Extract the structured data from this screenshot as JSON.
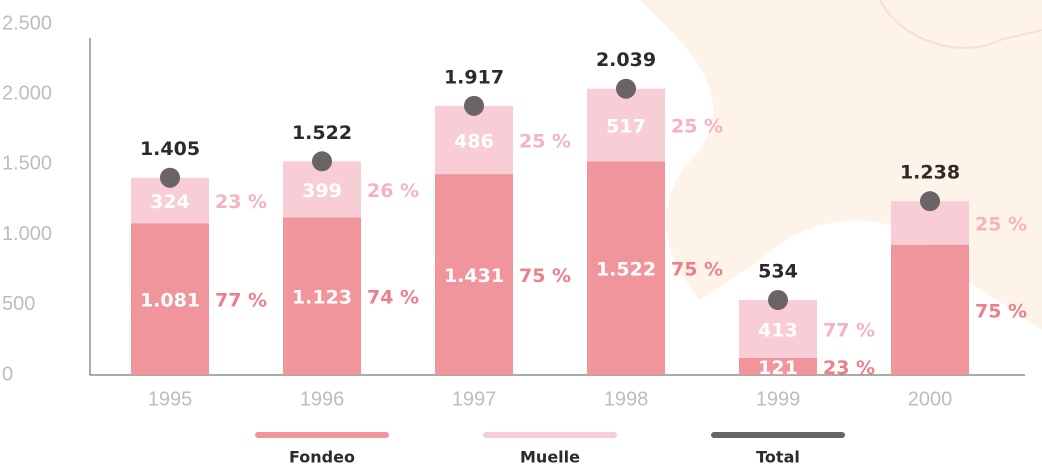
{
  "chart_data": {
    "type": "stacked_bar",
    "categories": [
      "1995",
      "1996",
      "1997",
      "1998",
      "1999",
      "2000"
    ],
    "ylim": [
      0,
      2500
    ],
    "yticks": [
      0,
      500,
      {
        "value": 1000,
        "label": "1.000"
      },
      {
        "value": 1500,
        "label": "1.500"
      },
      {
        "value": 2000,
        "label": "2.000"
      },
      {
        "value": 2500,
        "label": "2.500"
      }
    ],
    "series": [
      {
        "name": "Fondeo",
        "color": "#f0959b",
        "values": [
          1081,
          1123,
          1431,
          1522,
          121,
          928
        ],
        "value_labels": [
          "1.081",
          "1.123",
          "1.431",
          "1.522",
          "121",
          null
        ],
        "percent_labels": [
          "77 %",
          "74 %",
          "75 %",
          "75 %",
          "23 %",
          "75 %"
        ]
      },
      {
        "name": "Muelle",
        "color": "#f9cdd5",
        "values": [
          324,
          399,
          486,
          517,
          413,
          310
        ],
        "value_labels": [
          "324",
          "399",
          "486",
          "517",
          "413",
          null
        ],
        "percent_labels": [
          "23 %",
          "26 %",
          "25 %",
          "25 %",
          "77 %",
          "25 %"
        ]
      },
      {
        "name": "Total",
        "color": "#6b6466",
        "values": [
          1405,
          1522,
          1917,
          2039,
          534,
          1238
        ],
        "value_labels": [
          "1.405",
          "1.522",
          "1.917",
          "2.039",
          "534",
          "1.238"
        ]
      }
    ]
  }
}
